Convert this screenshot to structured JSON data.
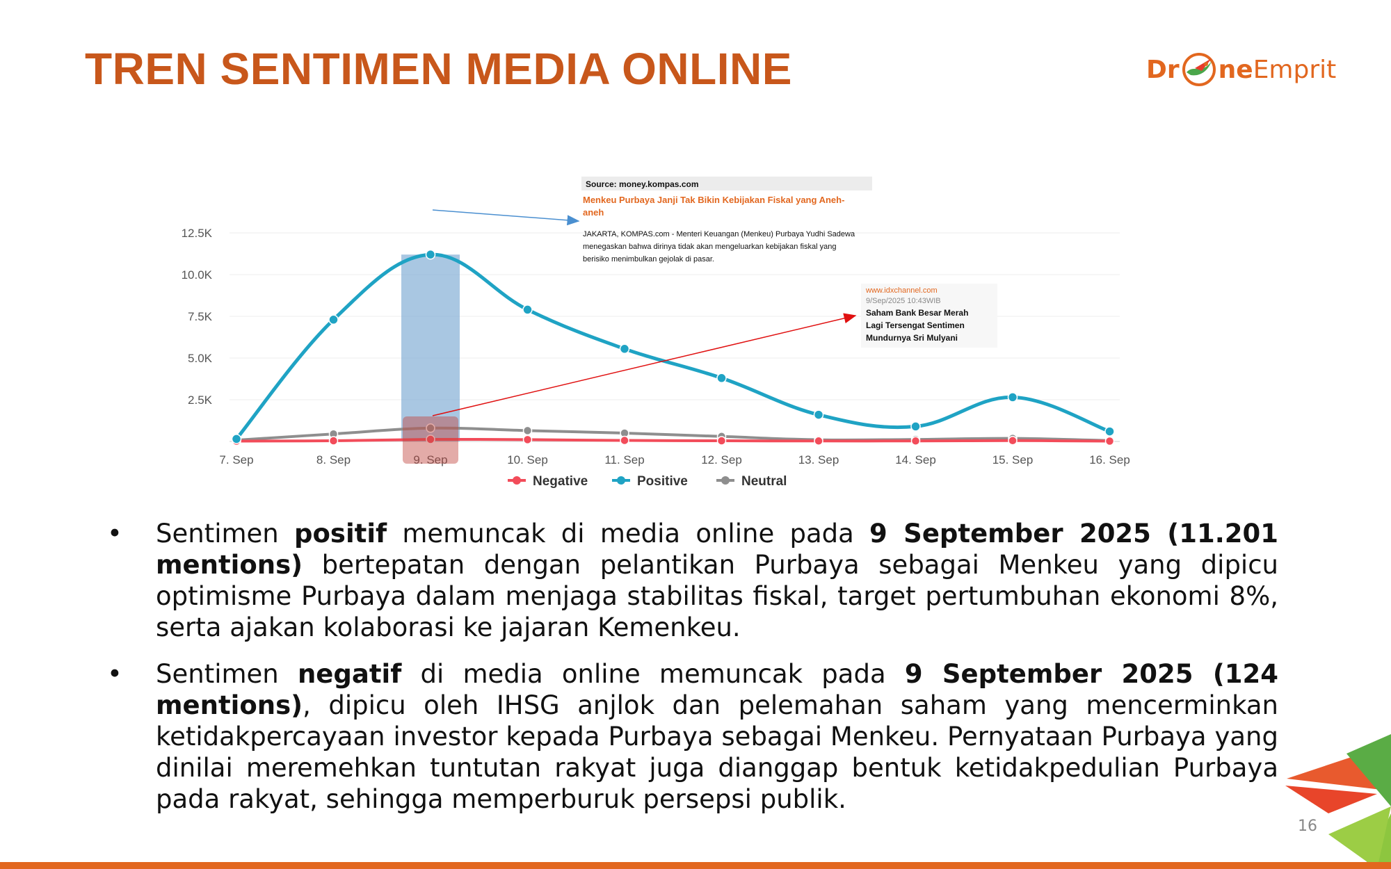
{
  "page": {
    "title": "TREN SENTIMEN MEDIA ONLINE",
    "page_number": "16"
  },
  "logo": {
    "part1": "Dr",
    "part2": "ne",
    "part3": "Emprit",
    "icon": "drone-emprit-bird-icon"
  },
  "chart_data": {
    "type": "line",
    "categories": [
      "7. Sep",
      "8. Sep",
      "9. Sep",
      "10. Sep",
      "11. Sep",
      "12. Sep",
      "13. Sep",
      "14. Sep",
      "15. Sep",
      "16. Sep"
    ],
    "y_ticks": [
      "2.5K",
      "5.0K",
      "7.5K",
      "10.0K",
      "12.5K"
    ],
    "y_tick_values": [
      2500,
      5000,
      7500,
      10000,
      12500
    ],
    "ylim": [
      0,
      12500
    ],
    "grid": true,
    "legend_position": "bottom",
    "highlight_category": "9. Sep",
    "series": [
      {
        "name": "Negative",
        "color": "#f24c5a",
        "values": [
          20,
          40,
          124,
          110,
          60,
          40,
          30,
          30,
          50,
          20
        ]
      },
      {
        "name": "Positive",
        "color": "#1fa3c4",
        "values": [
          150,
          7300,
          11201,
          7900,
          5550,
          3800,
          1600,
          900,
          2650,
          600
        ]
      },
      {
        "name": "Neutral",
        "color": "#8e8e8e",
        "values": [
          80,
          450,
          800,
          650,
          500,
          300,
          100,
          120,
          180,
          50
        ]
      }
    ],
    "annotations": [
      {
        "source": "Source: money.kompas.com",
        "headline_line1": "Menkeu Purbaya Janji Tak Bikin Kebijakan Fiskal yang Aneh-",
        "headline_line2": "aneh",
        "body_line1": "JAKARTA, KOMPAS.com - Menteri Keuangan (Menkeu) Purbaya Yudhi Sadewa",
        "body_line2": "menegaskan bahwa dirinya tidak akan mengeluarkan kebijakan fiskal yang",
        "body_line3": "berisiko menimbulkan gejolak di pasar."
      },
      {
        "source": "www.idxchannel.com",
        "timestamp": "9/Sep/2025 10:43WIB",
        "headline_line1": "Saham Bank Besar Merah",
        "headline_line2": "Lagi Tersengat Sentimen",
        "headline_line3": "Mundurnya Sri Mulyani"
      }
    ]
  },
  "bullets": [
    {
      "marker": "•",
      "t1": "Sentimen ",
      "b1": "positif",
      "t2": " memuncak di media online pada ",
      "b2": "9 September 2025 (11.201 mentions)",
      "t3": " bertepatan dengan pelantikan Purbaya sebagai Menkeu yang dipicu optimisme Purbaya dalam menjaga stabilitas fiskal, target pertumbuhan ekonomi 8%, serta ajakan kolaborasi ke jajaran Kemenkeu."
    },
    {
      "marker": "•",
      "t1": "Sentimen ",
      "b1": "negatif",
      "t2": " di media online memuncak pada ",
      "b2": "9 September 2025 (124 mentions)",
      "t3": ", dipicu oleh IHSG anjlok dan pelemahan saham yang mencerminkan ketidakpercayaan investor kepada Purbaya sebagai Menkeu. Pernyataan Purbaya yang dinilai meremehkan tuntutan rakyat juga dianggap bentuk ketidakpedulian Purbaya pada rakyat, sehingga memperburuk persepsi publik."
    }
  ]
}
